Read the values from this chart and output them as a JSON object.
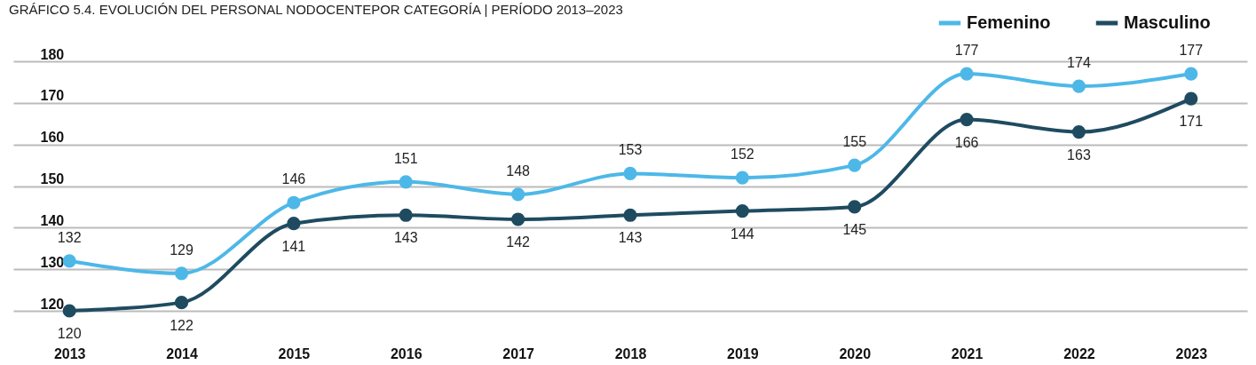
{
  "chart_data": {
    "type": "line",
    "title": "GRÁFICO 5.4. EVOLUCIÓN DEL PERSONAL NODOCENTEPOR CATEGORÍA | PERÍODO 2013–2023",
    "categories": [
      "2013",
      "2014",
      "2015",
      "2016",
      "2017",
      "2018",
      "2019",
      "2020",
      "2021",
      "2022",
      "2023"
    ],
    "series": [
      {
        "name": "Femenino",
        "color": "#4db8e8",
        "values": [
          132,
          129,
          146,
          151,
          148,
          153,
          152,
          155,
          177,
          174,
          177
        ]
      },
      {
        "name": "Masculino",
        "color": "#1f4b60",
        "values": [
          120,
          122,
          141,
          143,
          142,
          143,
          144,
          145,
          166,
          163,
          171
        ]
      }
    ],
    "ylim": [
      120,
      180
    ],
    "yticks": [
      120,
      130,
      140,
      150,
      160,
      170,
      180
    ],
    "grid": "y",
    "legend": "top right",
    "marker": "circle",
    "line_style": "solid",
    "data_labels": true
  }
}
